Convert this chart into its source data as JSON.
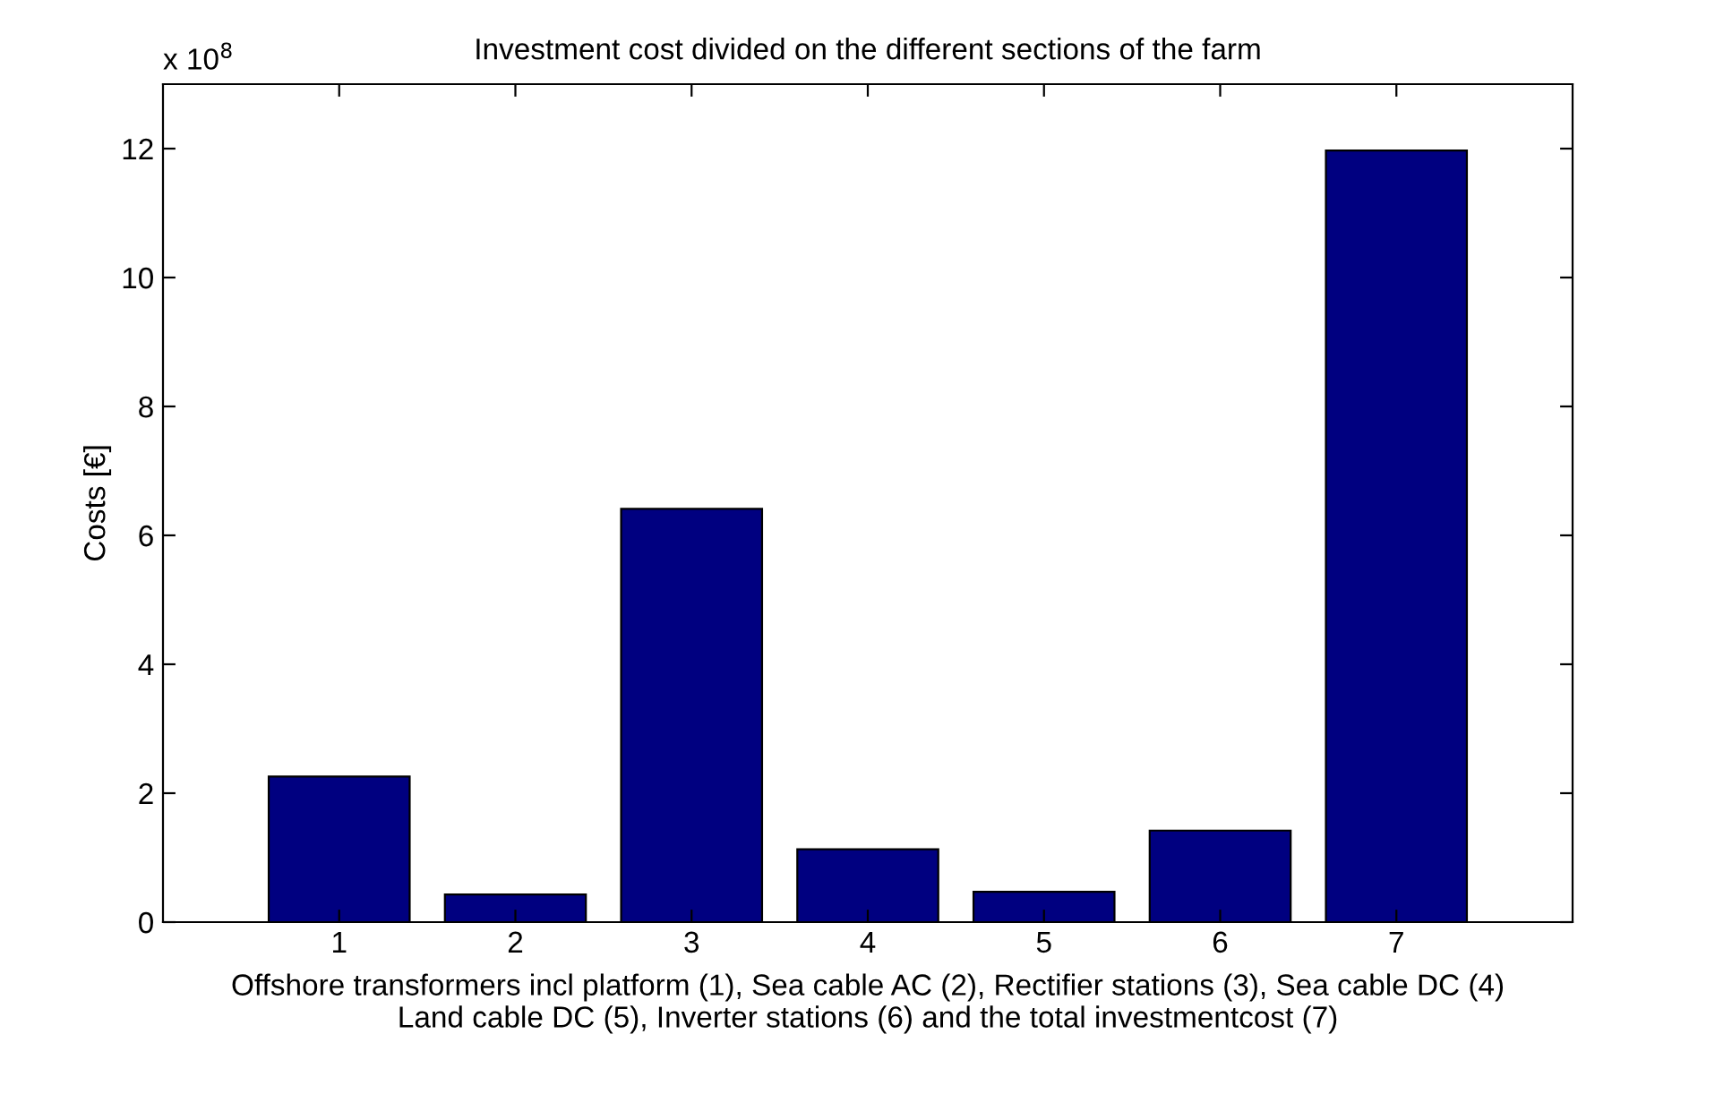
{
  "chart_data": {
    "type": "bar",
    "title": "Investment cost divided on the different sections of the farm",
    "xlabel": "Offshore transformers incl platform (1), Sea cable AC (2), Rectifier stations (3), Sea cable DC (4)\nLand cable DC (5), Inverter stations (6) and the total investmentcost (7)",
    "ylabel": "Costs [€]",
    "x": [
      1,
      2,
      3,
      4,
      5,
      6,
      7
    ],
    "values": [
      2.26,
      0.43,
      6.41,
      1.13,
      0.47,
      1.42,
      11.97
    ],
    "color": "#000080",
    "xlim": [
      0,
      8
    ],
    "xticks": [
      1,
      2,
      3,
      4,
      5,
      6,
      7
    ],
    "ylim": [
      0,
      13
    ],
    "yticks": [
      0,
      2,
      4,
      6,
      8,
      10,
      12
    ],
    "annotations": [
      "x 10$^{8}$"
    ],
    "grid": false,
    "legend": false
  }
}
